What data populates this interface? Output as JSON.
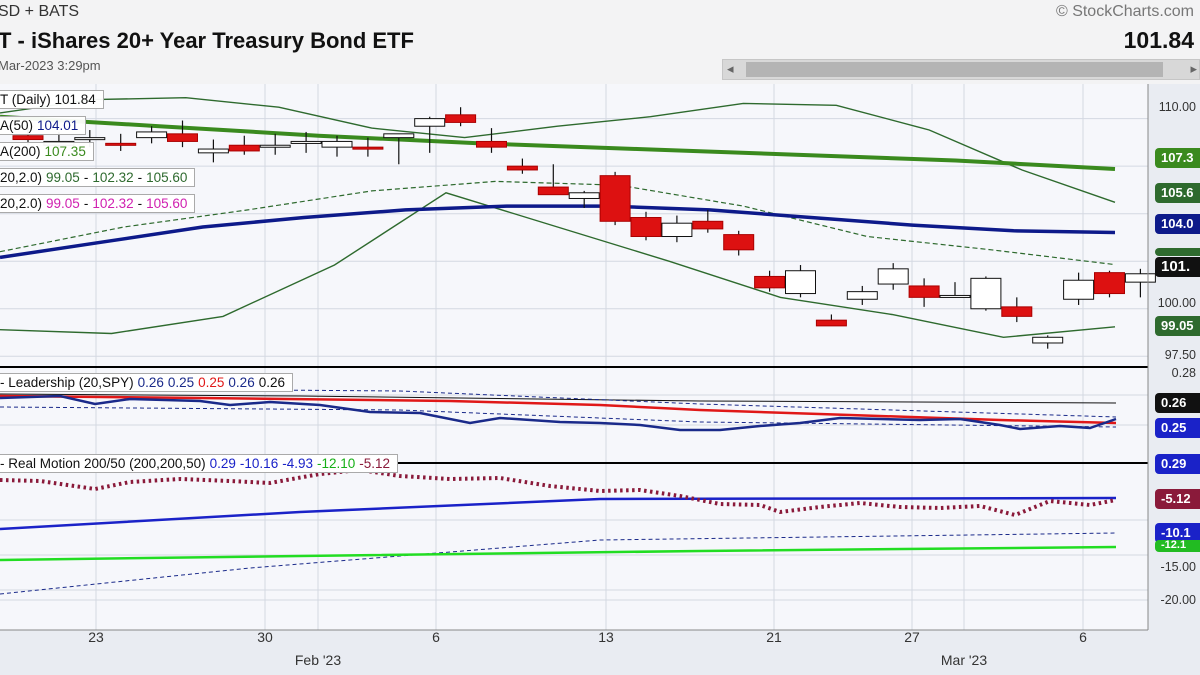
{
  "header": {
    "exchange": "SD + BATS",
    "title": "T - iShares 20+ Year Treasury Bond ETF",
    "date": "Mar-2023 3:29pm",
    "copyright": "© StockCharts.com",
    "last_price": "101.84"
  },
  "legend": {
    "daily": "T (Daily) 101.84",
    "sma50_label": "A(50)",
    "sma50_value": "104.01",
    "sma200_label": "A(200)",
    "sma200_value": "107.35",
    "bb1_label": "20,2.0)",
    "bb1_lower": "99.05",
    "bb1_mid": "102.32",
    "bb1_upper": "105.60",
    "bb2_label": "20,2.0)",
    "bb2_lower": "99.05",
    "bb2_mid": "102.32",
    "bb2_upper": "105.60",
    "sep": "-"
  },
  "leadership": {
    "label": "- Leadership (20,SPY)",
    "v1": "0.26",
    "v2": "0.25",
    "v3": "0.25",
    "v4": "0.26",
    "v5": "0.26",
    "axis": [
      "0.28"
    ],
    "badges": [
      "0.26",
      "0.25"
    ]
  },
  "real_motion": {
    "label": "- Real Motion 200/50 (200,200,50)",
    "v1": "0.29",
    "v2": "-10.16",
    "v3": "-4.93",
    "v4": "-12.10",
    "v5": "-5.12",
    "axis": [
      "-15.00",
      "-20.00"
    ],
    "badges": [
      "0.29",
      "-5.12",
      "-10.1",
      "-12.1"
    ]
  },
  "price_axis": {
    "ticks": [
      "110.00",
      "100.00",
      "97.50"
    ],
    "badges": [
      "107.3",
      "105.6",
      "104.0",
      "101.",
      "99.05"
    ]
  },
  "x_axis": {
    "day_labels": [
      "23",
      "30",
      "6",
      "13",
      "21",
      "27",
      "6"
    ],
    "month_labels": [
      "Feb '23",
      "Mar '23"
    ]
  },
  "colors": {
    "up": "#ffffff",
    "down": "#dd1111",
    "sma50": "#0d1a8a",
    "sma200": "#3a8a1e",
    "bb": "#2e6a2e",
    "lead_red": "#e01818",
    "lead_blue": "#1a2a8a",
    "rm_dots": "#8a1a3a",
    "rm_blue": "#1a22c8",
    "rm_green": "#22dd22"
  },
  "chart_data": {
    "type": "candlestick",
    "ticker": "TLT",
    "ylim": [
      97.2,
      111.4
    ],
    "ohlc": [
      [
        109.1,
        109.5,
        108.6,
        108.9
      ],
      [
        108.6,
        109.3,
        108.2,
        108.8
      ],
      [
        108.9,
        109.4,
        108.5,
        109.0
      ],
      [
        108.7,
        109.2,
        108.3,
        108.6
      ],
      [
        109.0,
        109.6,
        108.7,
        109.3
      ],
      [
        109.2,
        109.9,
        108.5,
        108.8
      ],
      [
        108.2,
        108.9,
        107.7,
        108.4
      ],
      [
        108.6,
        109.1,
        108.1,
        108.3
      ],
      [
        108.5,
        109.2,
        108.1,
        108.6
      ],
      [
        108.8,
        109.3,
        108.2,
        108.8
      ],
      [
        108.5,
        109.1,
        108.0,
        108.8
      ],
      [
        108.5,
        109.0,
        108.0,
        108.4
      ],
      [
        109.0,
        109.2,
        107.6,
        109.2
      ],
      [
        109.6,
        110.1,
        108.2,
        110.0
      ],
      [
        110.2,
        110.6,
        109.6,
        109.8
      ],
      [
        108.8,
        109.5,
        108.2,
        108.5
      ],
      [
        107.5,
        107.9,
        107.1,
        107.3
      ],
      [
        106.4,
        107.6,
        106.0,
        106.0
      ],
      [
        105.8,
        106.2,
        105.3,
        106.1
      ],
      [
        107.0,
        107.2,
        104.4,
        104.6
      ],
      [
        104.8,
        105.1,
        103.6,
        103.8
      ],
      [
        103.8,
        104.9,
        103.5,
        104.5
      ],
      [
        104.6,
        105.2,
        104.0,
        104.2
      ],
      [
        103.9,
        104.1,
        102.8,
        103.1
      ],
      [
        101.7,
        102.0,
        100.9,
        101.1
      ],
      [
        100.8,
        102.3,
        100.6,
        102.0
      ],
      [
        99.4,
        99.7,
        99.1,
        99.1
      ],
      [
        100.5,
        101.2,
        100.2,
        100.9
      ],
      [
        101.3,
        102.4,
        101.0,
        102.1
      ],
      [
        101.2,
        101.6,
        100.1,
        100.6
      ],
      [
        100.7,
        101.4,
        100.6,
        100.7
      ],
      [
        100.0,
        101.7,
        99.9,
        101.6
      ],
      [
        100.1,
        100.6,
        99.3,
        99.6
      ],
      [
        98.2,
        98.6,
        97.9,
        98.5
      ],
      [
        100.5,
        101.9,
        100.2,
        101.5
      ],
      [
        101.9,
        102.0,
        100.6,
        100.8
      ],
      [
        101.4,
        102.1,
        100.6,
        101.84
      ]
    ],
    "sma50": [
      102.7,
      103.5,
      104.3,
      104.8,
      105.2,
      105.4,
      105.4,
      105.2,
      104.8,
      104.4,
      104.1,
      104.01
    ],
    "sma200": [
      110.1,
      109.6,
      109.1,
      108.7,
      108.4,
      108.1,
      107.8,
      107.35
    ],
    "bb_upper": [
      110.3,
      111.0,
      111.1,
      110.6,
      109.5,
      109.0,
      109.6,
      110.1,
      110.8,
      110.7,
      109.4,
      107.3,
      105.6
    ],
    "bb_mid": [
      103.0,
      104.3,
      105.2,
      106.2,
      106.7,
      106.5,
      105.4,
      103.8,
      103.1,
      102.32
    ],
    "bb_lower": [
      98.9,
      98.7,
      99.6,
      102.3,
      106.1,
      104.3,
      102.5,
      100.6,
      99.7,
      98.5,
      99.05
    ],
    "leadership": {
      "line_red": 0.25,
      "line_blue": 0.26
    },
    "real_motion": {
      "values": [
        0.29,
        -10.16,
        -4.93,
        -12.1,
        -5.12
      ]
    }
  }
}
